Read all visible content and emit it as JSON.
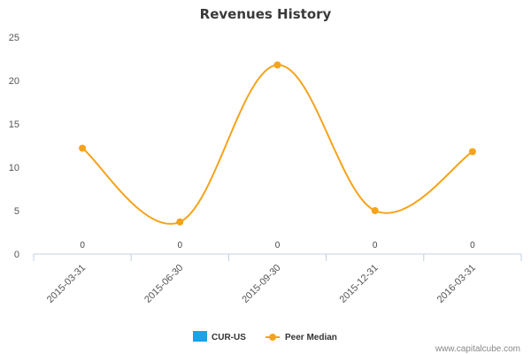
{
  "chart_data": {
    "type": "line",
    "title": "Revenues History",
    "xlabel": "",
    "ylabel": "",
    "categories": [
      "2015-03-31",
      "2015-06-30",
      "2015-09-30",
      "2015-12-31",
      "2016-03-31"
    ],
    "ylim": [
      0,
      25
    ],
    "yticks": [
      0,
      5,
      10,
      15,
      20,
      25
    ],
    "grid": false,
    "legend_position": "bottom-center",
    "series": [
      {
        "name": "CUR-US",
        "type": "bar",
        "color": "#1aa3e8",
        "values": [
          0,
          0,
          0,
          0,
          0
        ],
        "data_labels": [
          "0",
          "0",
          "0",
          "0",
          "0"
        ]
      },
      {
        "name": "Peer Median",
        "type": "spline",
        "color": "#f5a31a",
        "values": [
          12.2,
          3.7,
          21.8,
          5.0,
          11.8
        ]
      }
    ]
  },
  "watermark": "www.capitalcube.com"
}
